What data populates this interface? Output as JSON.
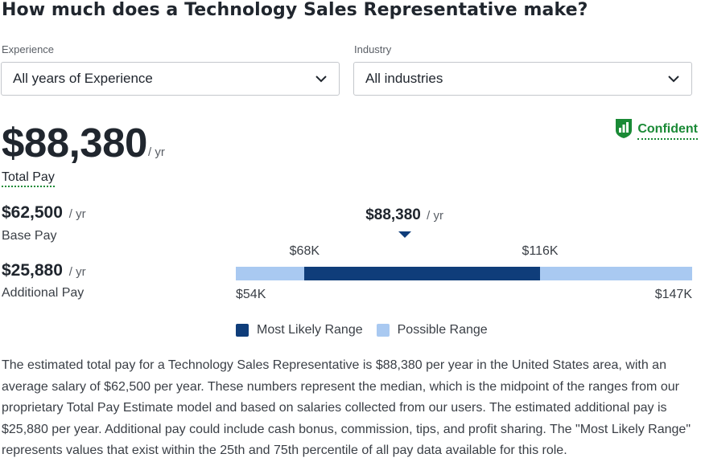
{
  "title": "How much does a Technology Sales Representative make?",
  "filters": {
    "experience": {
      "label": "Experience",
      "value": "All years of Experience",
      "icon": "chevron-down-icon"
    },
    "industry": {
      "label": "Industry",
      "value": "All industries",
      "icon": "chevron-down-icon"
    }
  },
  "confidence": {
    "label": "Confident",
    "icon": "signal-bars-shield-icon",
    "color": "#1a8a36"
  },
  "total_pay": {
    "amount": "$88,380",
    "unit": "/ yr",
    "label": "Total Pay"
  },
  "base_pay": {
    "amount": "$62,500",
    "unit": "/ yr",
    "label": "Base Pay"
  },
  "additional_pay": {
    "amount": "$25,880",
    "unit": "/ yr",
    "label": "Additional Pay"
  },
  "chart_data": {
    "type": "range-bar",
    "median": {
      "value": 88380,
      "label": "$88,380",
      "unit": "/ yr"
    },
    "possible_range": {
      "min": 54000,
      "max": 147000,
      "min_label": "$54K",
      "max_label": "$147K",
      "color": "#a9c9f1"
    },
    "likely_range": {
      "min": 68000,
      "max": 116000,
      "min_label": "$68K",
      "max_label": "$116K",
      "color": "#0f3d7a"
    },
    "legend": [
      {
        "name": "Most Likely Range",
        "color": "#0f3d7a"
      },
      {
        "name": "Possible Range",
        "color": "#a9c9f1"
      }
    ]
  },
  "description": "The estimated total pay for a Technology Sales Representative is $88,380 per year in the United States area, with an average salary of $62,500 per year. These numbers represent the median, which is the midpoint of the ranges from our proprietary Total Pay Estimate model and based on salaries collected from our users. The estimated additional pay is $25,880 per year. Additional pay could include cash bonus, commission, tips, and profit sharing. The \"Most Likely Range\" represents values that exist within the 25th and 75th percentile of all pay data available for this role."
}
